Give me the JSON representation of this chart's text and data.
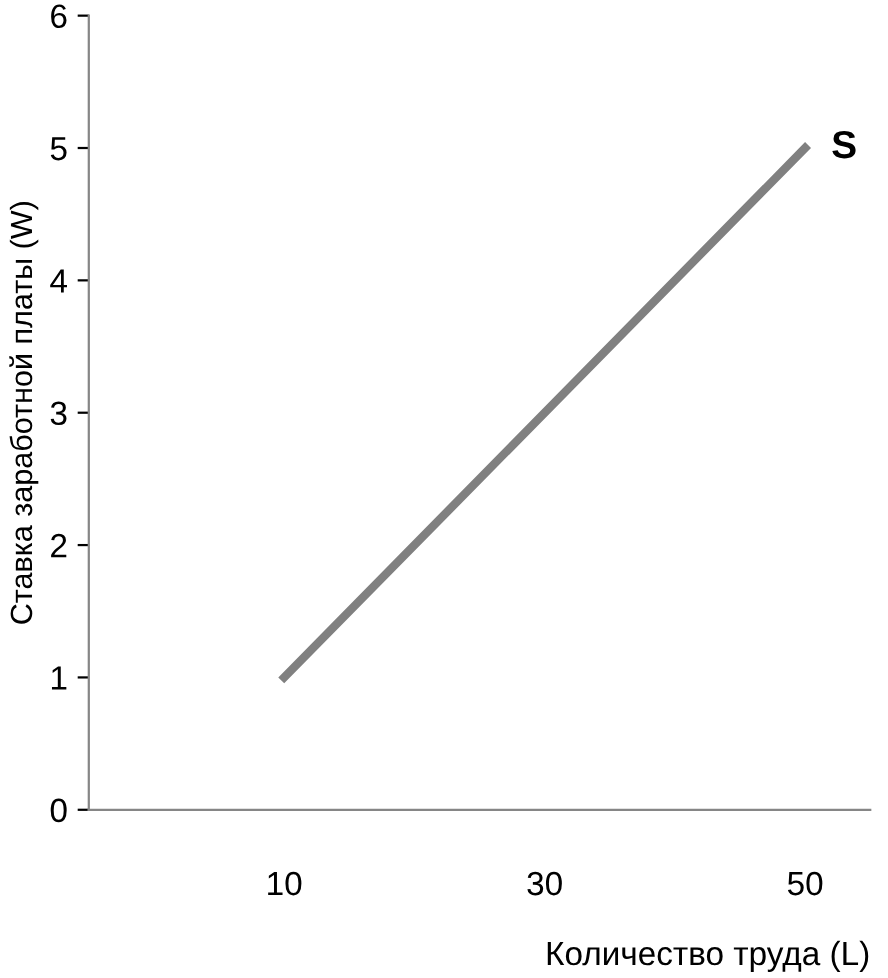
{
  "chart_data": {
    "type": "line",
    "xlabel": "Количество труда (L)",
    "ylabel": "Ставка заработной платы (W)",
    "x": [
      10,
      50
    ],
    "series": [
      {
        "name": "S",
        "color": "#808080",
        "values": [
          1,
          5
        ]
      }
    ],
    "xlim": [
      -5,
      55
    ],
    "xticks": [
      10,
      30,
      50
    ],
    "ylim": [
      0,
      6
    ],
    "yticks": [
      0,
      1,
      2,
      3,
      4,
      5,
      6
    ],
    "grid": false,
    "legend": false,
    "marker": "none",
    "line_style": "solid"
  }
}
